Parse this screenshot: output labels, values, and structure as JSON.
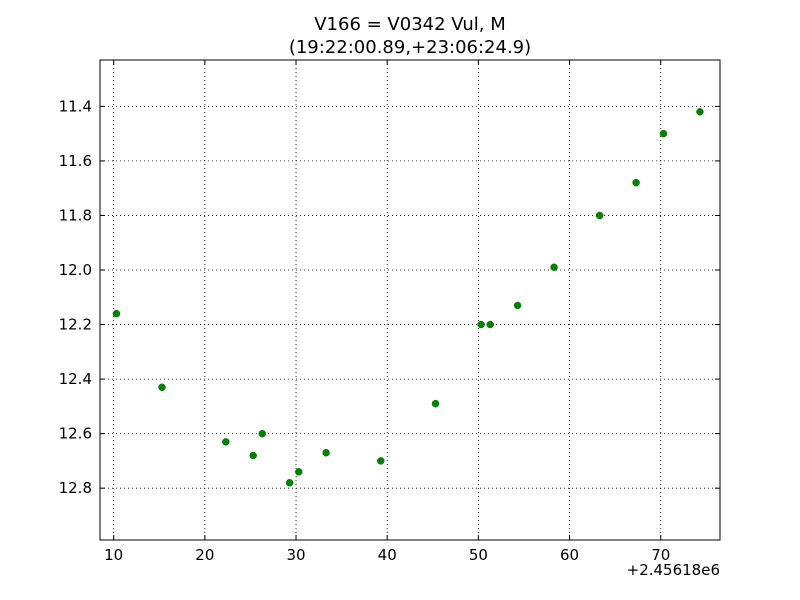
{
  "chart_data": {
    "type": "scatter",
    "title": "V166 = V0342 Vul, M",
    "subtitle": "(19:22:00.89,+23:06:24.9)",
    "xlabel": "",
    "ylabel": "",
    "x_offset_label": "+2.45618e6",
    "xlim": [
      8.5,
      76.5
    ],
    "ylim": [
      12.99,
      11.23
    ],
    "y_inverted": true,
    "grid": true,
    "x_ticks": [
      10,
      20,
      30,
      40,
      50,
      60,
      70
    ],
    "x_tick_labels": [
      "10",
      "20",
      "30",
      "40",
      "50",
      "60",
      "70"
    ],
    "y_ticks": [
      11.4,
      11.6,
      11.8,
      12.0,
      12.2,
      12.4,
      12.6,
      12.8
    ],
    "y_tick_labels": [
      "11.4",
      "11.6",
      "11.8",
      "12.0",
      "12.2",
      "12.4",
      "12.6",
      "12.8"
    ],
    "marker_color": "#007f00",
    "series": [
      {
        "points": [
          {
            "x": 10.3,
            "y": 12.16
          },
          {
            "x": 15.3,
            "y": 12.43
          },
          {
            "x": 22.3,
            "y": 12.63
          },
          {
            "x": 25.3,
            "y": 12.68
          },
          {
            "x": 26.3,
            "y": 12.6
          },
          {
            "x": 29.3,
            "y": 12.78
          },
          {
            "x": 30.3,
            "y": 12.74
          },
          {
            "x": 33.3,
            "y": 12.67
          },
          {
            "x": 39.3,
            "y": 12.7
          },
          {
            "x": 45.3,
            "y": 12.49
          },
          {
            "x": 50.3,
            "y": 12.2
          },
          {
            "x": 51.3,
            "y": 12.2
          },
          {
            "x": 54.3,
            "y": 12.13
          },
          {
            "x": 58.3,
            "y": 11.99
          },
          {
            "x": 63.3,
            "y": 11.8
          },
          {
            "x": 67.3,
            "y": 11.68
          },
          {
            "x": 70.3,
            "y": 11.5
          },
          {
            "x": 74.3,
            "y": 11.42
          }
        ]
      }
    ]
  }
}
